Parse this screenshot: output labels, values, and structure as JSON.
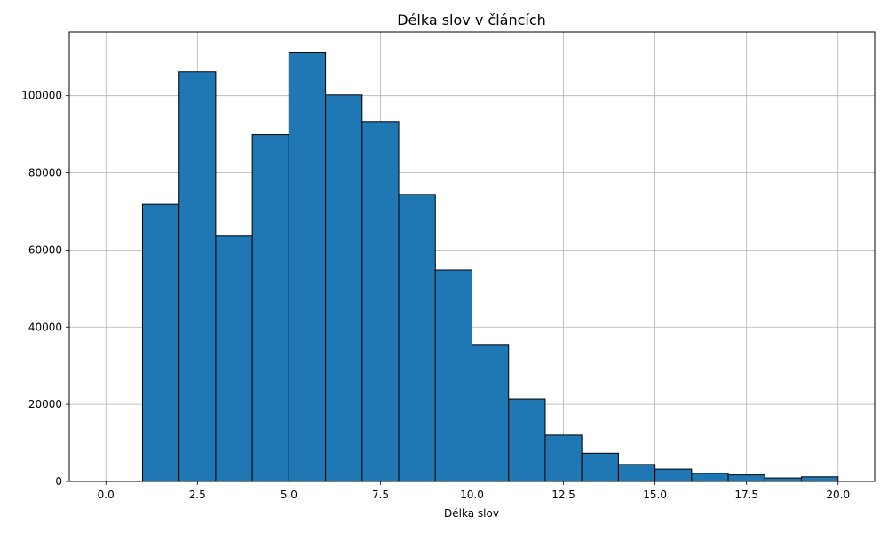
{
  "chart_data": {
    "type": "bar",
    "title": "Délka slov v článcích",
    "xlabel": "Délka slov",
    "ylabel": "",
    "bin_edges": [
      0,
      1,
      2,
      3,
      4,
      5,
      6,
      7,
      8,
      9,
      10,
      11,
      12,
      13,
      14,
      15,
      16,
      17,
      18,
      19,
      20
    ],
    "values": [
      0,
      71800,
      106200,
      63600,
      89900,
      111100,
      100200,
      93300,
      74400,
      54800,
      35500,
      21400,
      12000,
      7300,
      4400,
      3200,
      2100,
      1700,
      900,
      1200
    ],
    "xlim": [
      -1,
      21
    ],
    "ylim": [
      0,
      116500
    ],
    "x_ticks": [
      0,
      2.5,
      5,
      7.5,
      10,
      12.5,
      15,
      17.5,
      20
    ],
    "x_tick_labels": [
      "0.0",
      "2.5",
      "5.0",
      "7.5",
      "10.0",
      "12.5",
      "15.0",
      "17.5",
      "20.0"
    ],
    "y_ticks": [
      0,
      20000,
      40000,
      60000,
      80000,
      100000
    ],
    "y_tick_labels": [
      "0",
      "20000",
      "40000",
      "60000",
      "80000",
      "100000"
    ],
    "grid": true,
    "bar_color": "#1f77b4",
    "bar_edge_color": "#000000",
    "grid_color": "#b0b0b0"
  }
}
